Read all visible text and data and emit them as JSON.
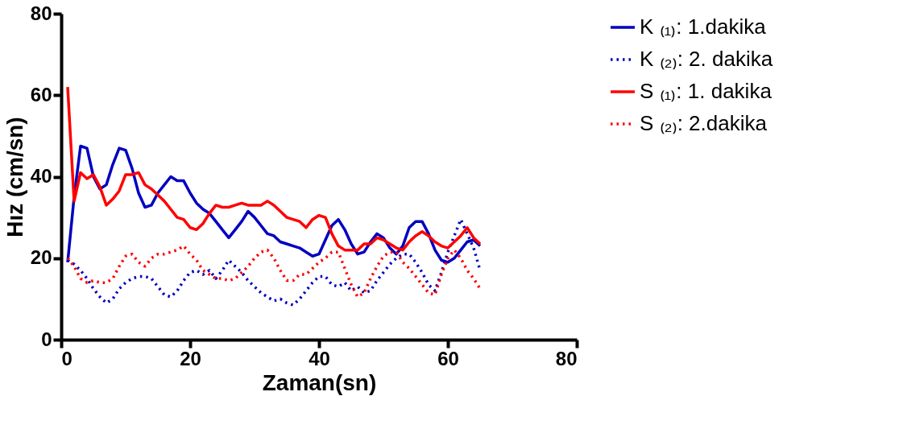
{
  "chart_data": {
    "type": "line",
    "xlabel": "Zaman(sn)",
    "ylabel": "Hız (cm/sn)",
    "x": [
      1,
      2,
      3,
      4,
      5,
      6,
      7,
      8,
      9,
      10,
      11,
      12,
      13,
      14,
      15,
      16,
      17,
      18,
      19,
      20,
      21,
      22,
      23,
      24,
      25,
      26,
      27,
      28,
      29,
      30,
      31,
      32,
      33,
      34,
      35,
      36,
      37,
      38,
      39,
      40,
      41,
      42,
      43,
      44,
      45,
      46,
      47,
      48,
      49,
      50,
      51,
      52,
      53,
      54,
      55,
      56,
      57,
      58,
      59,
      60,
      61,
      62,
      63,
      64,
      65
    ],
    "xlim": [
      0,
      80
    ],
    "xticks": [
      0,
      20,
      40,
      60,
      80
    ],
    "ylim": [
      0,
      80
    ],
    "yticks": [
      0,
      20,
      40,
      60,
      80
    ],
    "grid": false,
    "legend": "top right",
    "marker": "none",
    "series": [
      {
        "name": "K ₍₁₎: 1.dakika",
        "color": "#0000c0",
        "line_style": "solid",
        "values": [
          19,
          35,
          47.5,
          47,
          40,
          37,
          38,
          43,
          47,
          46.5,
          42,
          36,
          32.5,
          33,
          36,
          38,
          40,
          39,
          39,
          36,
          33.5,
          32,
          31,
          29,
          27,
          25,
          27,
          29,
          31.5,
          30,
          28,
          26,
          25.5,
          24,
          23.5,
          23,
          22.5,
          21.5,
          20.5,
          21,
          24.5,
          28,
          29.5,
          27,
          23.5,
          21,
          21.5,
          24,
          26,
          25,
          22.5,
          21,
          23,
          27.5,
          29,
          29,
          26,
          22,
          19.5,
          19,
          20,
          22,
          24,
          24.5,
          23
        ]
      },
      {
        "name": "K ₍₂₎: 2. dakika",
        "color": "#0000c0",
        "line_style": "dotted",
        "values": [
          19.5,
          18.5,
          17,
          15,
          12.5,
          10.5,
          9,
          10,
          12.5,
          14,
          15,
          15.5,
          15.5,
          15,
          13,
          11,
          10.5,
          12,
          14.5,
          16.5,
          17,
          16,
          17,
          15,
          17,
          19.5,
          18,
          16.5,
          14.5,
          13,
          11.5,
          10.5,
          9.5,
          10,
          9,
          8.5,
          10,
          12,
          14,
          15.5,
          15.5,
          13.5,
          13,
          14,
          12,
          13,
          11.5,
          12,
          14.5,
          16.5,
          18.5,
          20,
          21,
          21,
          19,
          16.5,
          13.5,
          12,
          16.5,
          21.5,
          25.5,
          29.5,
          26,
          22.5,
          17
        ]
      },
      {
        "name": "S ₍₁₎: 1. dakika",
        "color": "#ff0000",
        "line_style": "solid",
        "values": [
          62,
          34,
          41,
          39.5,
          40.5,
          37.5,
          33,
          34.5,
          36.5,
          40.5,
          40.5,
          41,
          38,
          37,
          35.5,
          34,
          32,
          30,
          29.5,
          27.5,
          27,
          28.5,
          31,
          33,
          32.5,
          32.5,
          33,
          33.5,
          33,
          33,
          33,
          34,
          33,
          31.5,
          30,
          29.5,
          29,
          27.5,
          29.5,
          30.5,
          30,
          26,
          23,
          22,
          22,
          22,
          23.5,
          23.5,
          25,
          24.5,
          23.5,
          22.5,
          22,
          24,
          25.5,
          26.5,
          25.5,
          24,
          23,
          22.5,
          24,
          25.5,
          27.5,
          25,
          23.5
        ]
      },
      {
        "name": "S ₍₂₎: 2.dakika",
        "color": "#ff0000",
        "line_style": "dotted",
        "values": [
          20,
          18,
          15,
          14,
          14.5,
          14,
          14,
          15,
          18,
          20.5,
          21,
          19,
          18,
          20,
          21,
          21,
          21.5,
          22,
          23,
          21,
          19.5,
          17,
          16,
          15,
          15,
          14.5,
          15,
          16.5,
          18,
          20,
          21.5,
          22,
          20,
          17,
          14.5,
          14.5,
          16,
          16,
          17.5,
          19,
          20,
          21.5,
          21.5,
          17.5,
          13.5,
          10.5,
          11.5,
          15,
          18,
          20.5,
          21.5,
          21.5,
          19,
          17.5,
          15.5,
          13.5,
          11.5,
          11,
          16,
          20,
          22,
          20,
          17,
          15,
          12.5
        ]
      }
    ]
  }
}
